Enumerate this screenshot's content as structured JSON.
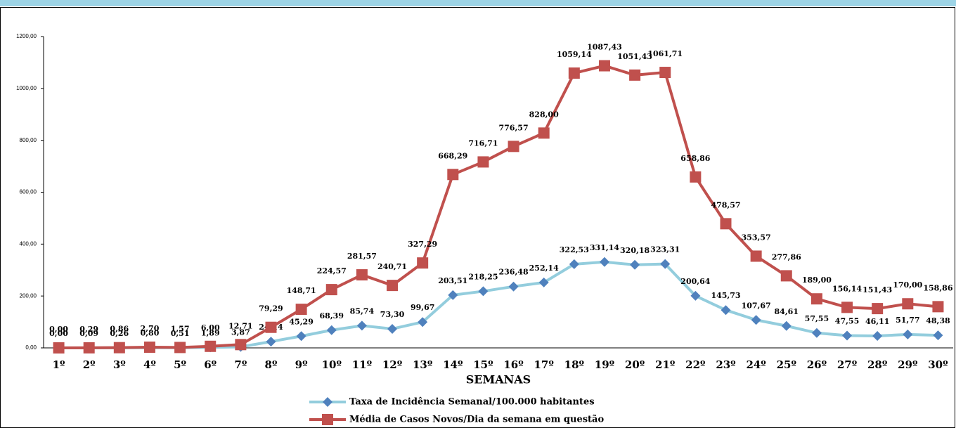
{
  "chart_data": {
    "type": "line",
    "x_label": "SEMANAS",
    "categories": [
      "1º",
      "2º",
      "3º",
      "4º",
      "5º",
      "6º",
      "7º",
      "8º",
      "9º",
      "10º",
      "11º",
      "12º",
      "13º",
      "14º",
      "15º",
      "16º",
      "17º",
      "18º",
      "19º",
      "20º",
      "21º",
      "22º",
      "23º",
      "24º",
      "25º",
      "26º",
      "27º",
      "28º",
      "29º",
      "30º"
    ],
    "series": [
      {
        "name": "Taxa de Incidência Semanal/100.000 habitantes",
        "color": "#93cddd",
        "marker_color": "#4f81bd",
        "marker": "diamond",
        "values": [
          0,
          0.09,
          0.26,
          0.8,
          0.51,
          1.89,
          3.87,
          24.14,
          45.29,
          68.39,
          85.74,
          73.3,
          99.67,
          203.51,
          218.25,
          236.48,
          252.14,
          322.53,
          331.14,
          320.18,
          323.31,
          200.64,
          145.73,
          107.67,
          84.61,
          57.55,
          47.55,
          46.11,
          51.77,
          48.38
        ],
        "value_labels": [
          "0,00",
          "0,09",
          "0,26",
          "0,80",
          "0,51",
          "1,89",
          "3,87",
          "24,14",
          "45,29",
          "68,39",
          "85,74",
          "73,30",
          "99,67",
          "203,51",
          "218,25",
          "236,48",
          "252,14",
          "322,53",
          "331,14",
          "320,18",
          "323,31",
          "200,64",
          "145,73",
          "107,67",
          "84,61",
          "57,55",
          "47,55",
          "46,11",
          "51,77",
          "48,38"
        ]
      },
      {
        "name": "Média de Casos Novos/Dia da semana em questão",
        "color": "#c0504d",
        "marker_color": "#c0504d",
        "marker": "square",
        "values": [
          0,
          0.29,
          0.86,
          2.7,
          1.57,
          6,
          12.71,
          79.29,
          148.71,
          224.57,
          281.57,
          240.71,
          327.29,
          668.29,
          716.71,
          776.57,
          828,
          1059.14,
          1087.43,
          1051.43,
          1061.71,
          658.86,
          478.57,
          353.57,
          277.86,
          189,
          156.14,
          151.43,
          170,
          158.86
        ],
        "value_labels": [
          "0,00",
          "0,29",
          "0,86",
          "2,70",
          "1,57",
          "6,00",
          "12,71",
          "79,29",
          "148,71",
          "224,57",
          "281,57",
          "240,71",
          "327,29",
          "668,29",
          "716,71",
          "776,57",
          "828,00",
          "1059,14",
          "1087,43",
          "1051,43",
          "1061,71",
          "658,86",
          "478,57",
          "353,57",
          "277,86",
          "189,00",
          "156,14",
          "151,43",
          "170,00",
          "158,86"
        ]
      }
    ],
    "ylim": [
      0,
      1200
    ],
    "yticks": [
      {
        "value": 0,
        "label": "0,00"
      },
      {
        "value": 200,
        "label": "200,00"
      },
      {
        "value": 400,
        "label": "400,00"
      },
      {
        "value": 600,
        "label": "600,00"
      },
      {
        "value": 800,
        "label": "800,00"
      },
      {
        "value": 1000,
        "label": "1000,00"
      },
      {
        "value": 1200,
        "label": "1200,00"
      }
    ],
    "grid": false
  }
}
